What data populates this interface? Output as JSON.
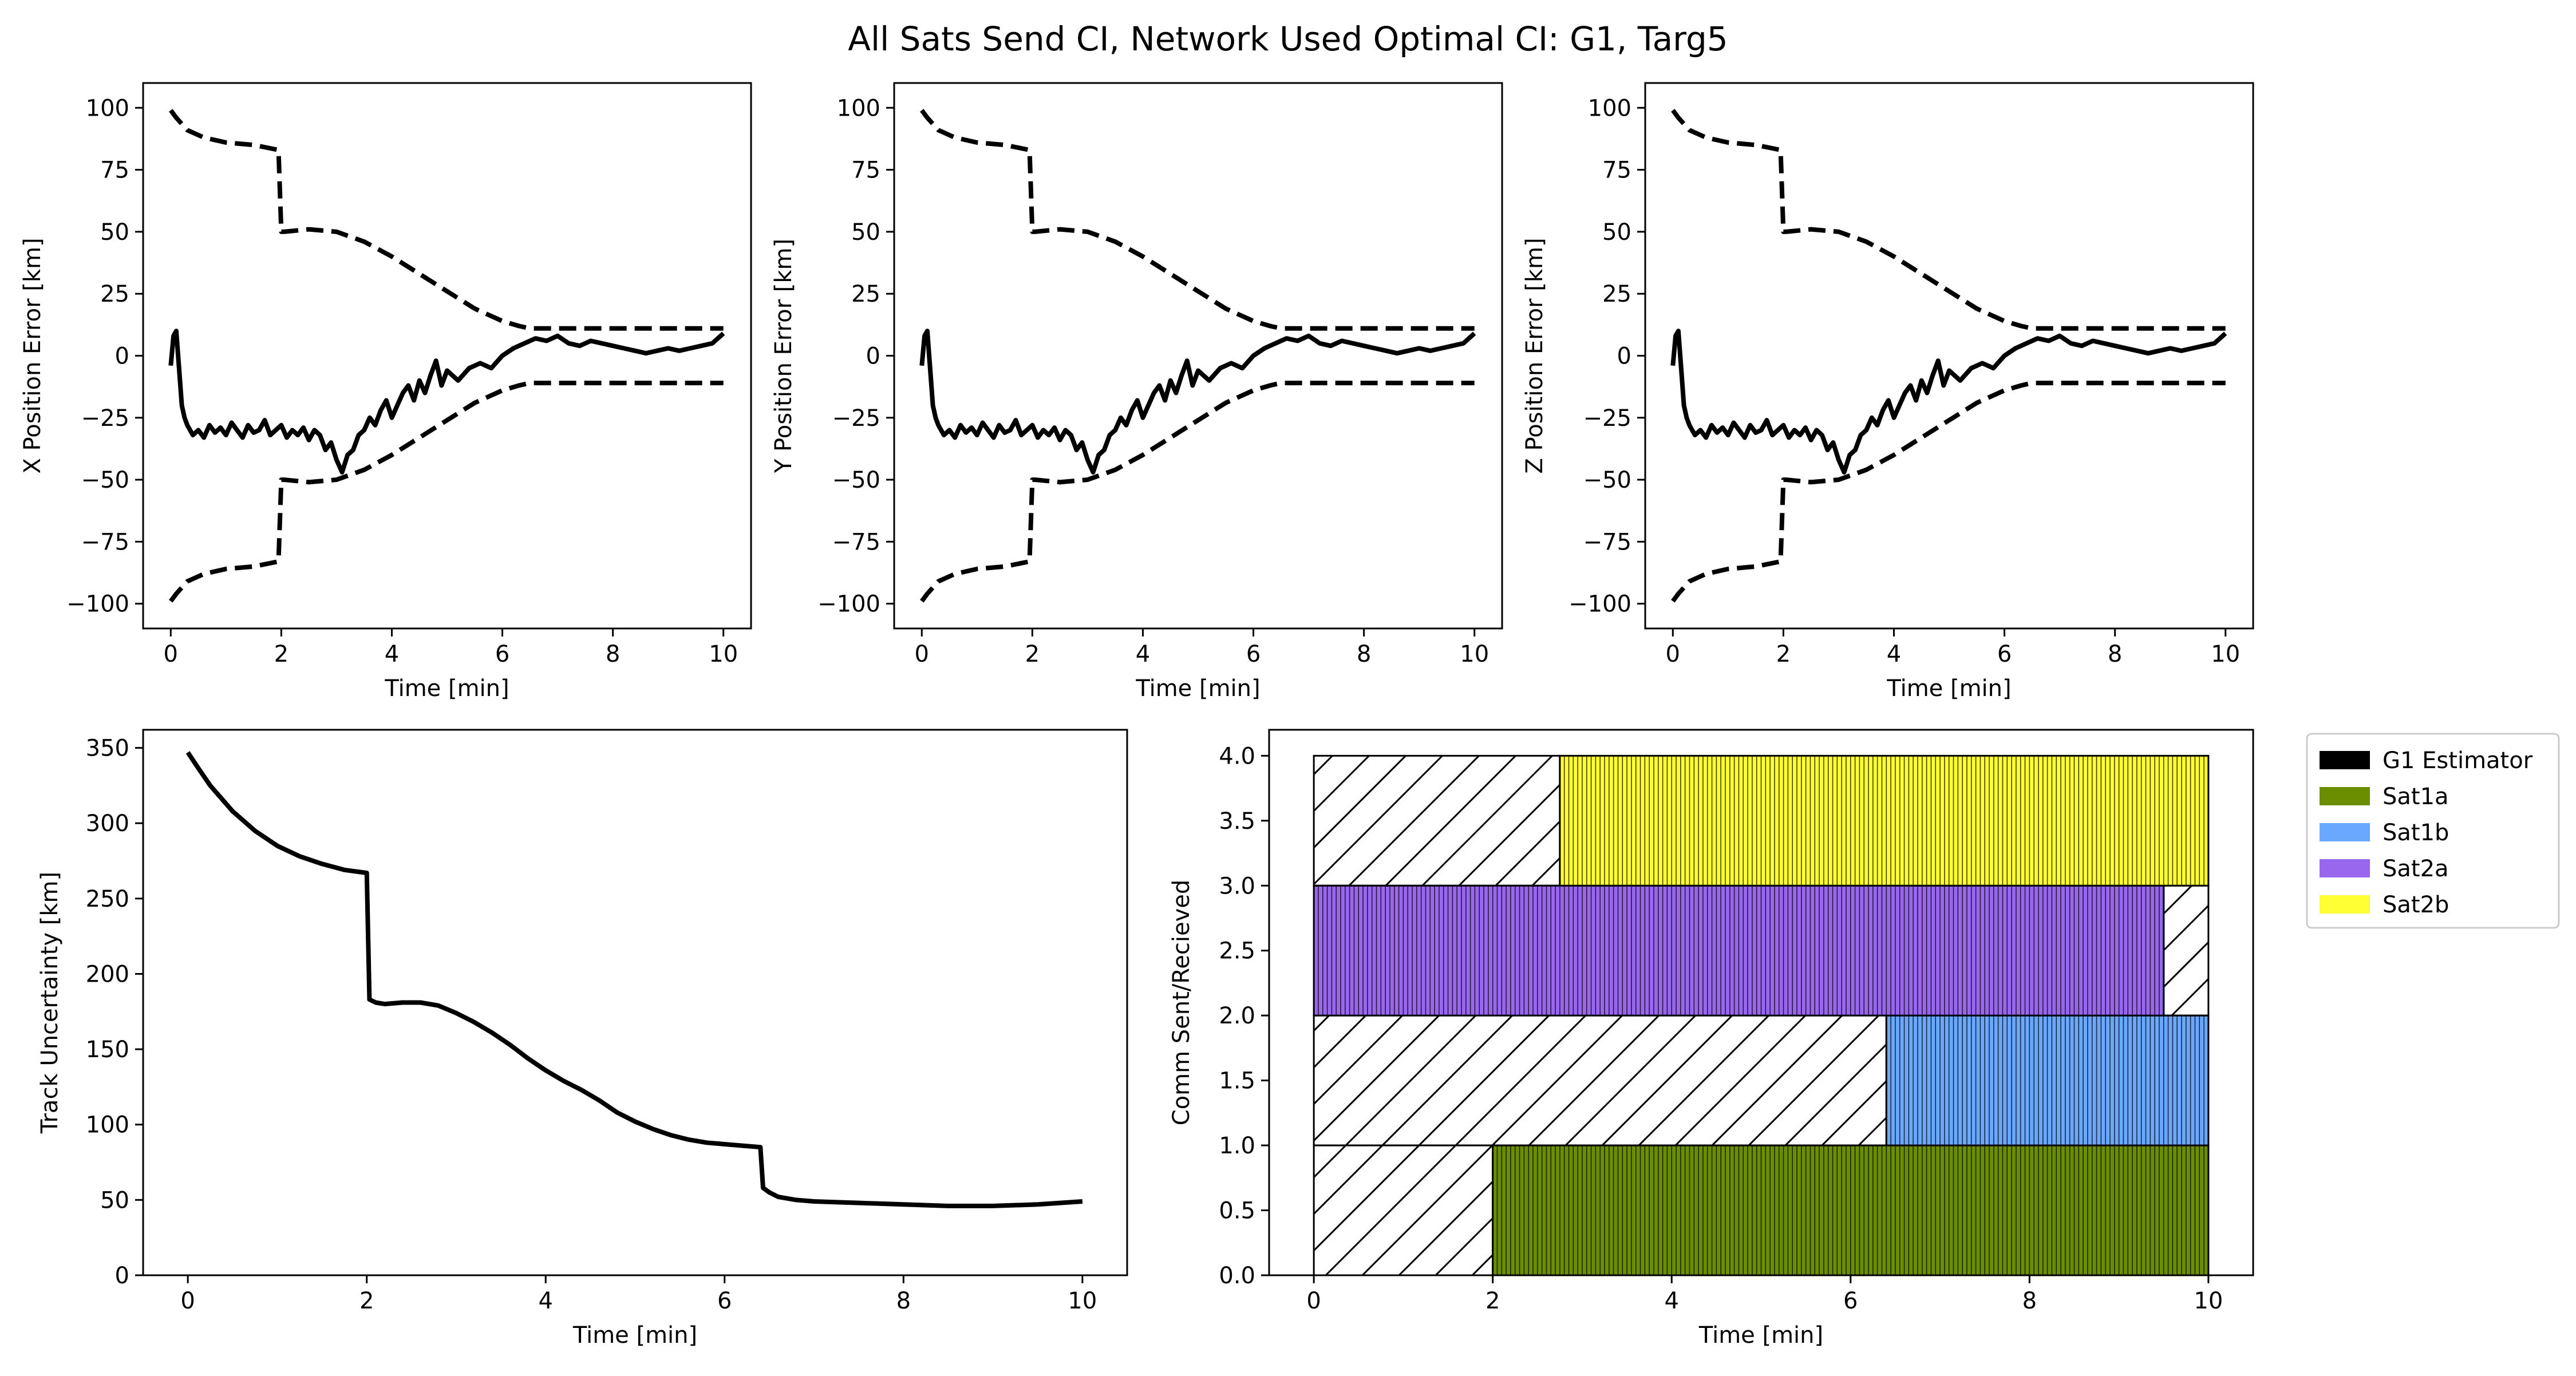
{
  "figure": {
    "title": "All Sats Send CI, Network Used Optimal CI: G1, Targ5"
  },
  "chart_data": [
    {
      "type": "line",
      "xlabel": "Time [min]",
      "ylabel": "X Position Error [km]",
      "xlim": [
        -0.5,
        10.5
      ],
      "ylim": [
        -110,
        110
      ],
      "xticks": [
        0,
        2,
        4,
        6,
        8,
        10
      ],
      "yticks": [
        -100,
        -75,
        -50,
        -25,
        0,
        25,
        50,
        75,
        100
      ],
      "grid": false,
      "series": [
        {
          "style": "solid",
          "x": [
            0,
            0.05,
            0.1,
            0.15,
            0.2,
            0.25,
            0.3,
            0.4,
            0.5,
            0.6,
            0.7,
            0.8,
            0.9,
            1.0,
            1.1,
            1.2,
            1.3,
            1.4,
            1.5,
            1.6,
            1.7,
            1.8,
            1.9,
            2.0,
            2.1,
            2.2,
            2.3,
            2.4,
            2.5,
            2.6,
            2.7,
            2.8,
            2.9,
            3.0,
            3.1,
            3.2,
            3.3,
            3.4,
            3.5,
            3.6,
            3.7,
            3.8,
            3.9,
            4.0,
            4.1,
            4.2,
            4.3,
            4.4,
            4.5,
            4.6,
            4.7,
            4.8,
            4.9,
            5.0,
            5.2,
            5.4,
            5.6,
            5.8,
            6.0,
            6.2,
            6.4,
            6.6,
            6.8,
            7.0,
            7.2,
            7.4,
            7.6,
            7.8,
            8.0,
            8.2,
            8.4,
            8.6,
            8.8,
            9.0,
            9.2,
            9.4,
            9.6,
            9.8,
            10.0
          ],
          "y": [
            -4,
            8,
            10,
            -5,
            -20,
            -25,
            -28,
            -32,
            -30,
            -33,
            -28,
            -31,
            -29,
            -32,
            -27,
            -30,
            -33,
            -28,
            -31,
            -30,
            -26,
            -32,
            -30,
            -28,
            -33,
            -30,
            -32,
            -29,
            -34,
            -30,
            -32,
            -38,
            -35,
            -42,
            -47,
            -40,
            -38,
            -32,
            -30,
            -25,
            -28,
            -22,
            -18,
            -25,
            -20,
            -15,
            -12,
            -18,
            -10,
            -15,
            -8,
            -2,
            -12,
            -6,
            -10,
            -5,
            -3,
            -5,
            0,
            3,
            5,
            7,
            6,
            8,
            5,
            4,
            6,
            5,
            4,
            3,
            2,
            1,
            2,
            3,
            2,
            3,
            4,
            5,
            9
          ]
        },
        {
          "style": "dashed",
          "x": [
            0,
            0.1,
            0.3,
            0.6,
            1.0,
            1.5,
            1.95,
            2.0,
            2.05,
            2.5,
            3.0,
            3.5,
            4.0,
            4.5,
            5.0,
            5.5,
            6.0,
            6.3,
            6.5,
            7.0,
            8.0,
            9.0,
            10.0
          ],
          "y": [
            99,
            96,
            91,
            88,
            86,
            85,
            83,
            50,
            50,
            51,
            50,
            46,
            40,
            33,
            26,
            19,
            14,
            12,
            11,
            11,
            11,
            11,
            11
          ]
        },
        {
          "style": "dashed",
          "x": [
            0,
            0.1,
            0.3,
            0.6,
            1.0,
            1.5,
            1.95,
            2.0,
            2.05,
            2.5,
            3.0,
            3.5,
            4.0,
            4.5,
            5.0,
            5.5,
            6.0,
            6.3,
            6.5,
            7.0,
            8.0,
            9.0,
            10.0
          ],
          "y": [
            -99,
            -96,
            -91,
            -88,
            -86,
            -85,
            -83,
            -50,
            -50,
            -51,
            -50,
            -46,
            -40,
            -33,
            -26,
            -19,
            -14,
            -12,
            -11,
            -11,
            -11,
            -11,
            -11
          ]
        }
      ]
    },
    {
      "type": "line",
      "xlabel": "Time [min]",
      "ylabel": "Y Position Error [km]",
      "xlim": [
        -0.5,
        10.5
      ],
      "ylim": [
        -110,
        110
      ],
      "xticks": [
        0,
        2,
        4,
        6,
        8,
        10
      ],
      "yticks": [
        -100,
        -75,
        -50,
        -25,
        0,
        25,
        50,
        75,
        100
      ],
      "grid": false,
      "series": [
        {
          "style": "solid",
          "x": [
            0,
            0.05,
            0.1,
            0.15,
            0.2,
            0.25,
            0.3,
            0.4,
            0.5,
            0.6,
            0.7,
            0.8,
            0.9,
            1.0,
            1.1,
            1.2,
            1.3,
            1.4,
            1.5,
            1.6,
            1.7,
            1.8,
            1.9,
            2.0,
            2.1,
            2.2,
            2.3,
            2.4,
            2.5,
            2.6,
            2.7,
            2.8,
            2.9,
            3.0,
            3.1,
            3.2,
            3.3,
            3.4,
            3.5,
            3.6,
            3.7,
            3.8,
            3.9,
            4.0,
            4.1,
            4.2,
            4.3,
            4.4,
            4.5,
            4.6,
            4.7,
            4.8,
            4.9,
            5.0,
            5.2,
            5.4,
            5.6,
            5.8,
            6.0,
            6.2,
            6.4,
            6.6,
            6.8,
            7.0,
            7.2,
            7.4,
            7.6,
            7.8,
            8.0,
            8.2,
            8.4,
            8.6,
            8.8,
            9.0,
            9.2,
            9.4,
            9.6,
            9.8,
            10.0
          ],
          "y": [
            -4,
            8,
            10,
            -5,
            -20,
            -25,
            -28,
            -32,
            -30,
            -33,
            -28,
            -31,
            -29,
            -32,
            -27,
            -30,
            -33,
            -28,
            -31,
            -30,
            -26,
            -32,
            -30,
            -28,
            -33,
            -30,
            -32,
            -29,
            -34,
            -30,
            -32,
            -38,
            -35,
            -42,
            -47,
            -40,
            -38,
            -32,
            -30,
            -25,
            -28,
            -22,
            -18,
            -25,
            -20,
            -15,
            -12,
            -18,
            -10,
            -15,
            -8,
            -2,
            -12,
            -6,
            -10,
            -5,
            -3,
            -5,
            0,
            3,
            5,
            7,
            6,
            8,
            5,
            4,
            6,
            5,
            4,
            3,
            2,
            1,
            2,
            3,
            2,
            3,
            4,
            5,
            9
          ]
        },
        {
          "style": "dashed",
          "x": [
            0,
            0.1,
            0.3,
            0.6,
            1.0,
            1.5,
            1.95,
            2.0,
            2.05,
            2.5,
            3.0,
            3.5,
            4.0,
            4.5,
            5.0,
            5.5,
            6.0,
            6.3,
            6.5,
            7.0,
            8.0,
            9.0,
            10.0
          ],
          "y": [
            99,
            96,
            91,
            88,
            86,
            85,
            83,
            50,
            50,
            51,
            50,
            46,
            40,
            33,
            26,
            19,
            14,
            12,
            11,
            11,
            11,
            11,
            11
          ]
        },
        {
          "style": "dashed",
          "x": [
            0,
            0.1,
            0.3,
            0.6,
            1.0,
            1.5,
            1.95,
            2.0,
            2.05,
            2.5,
            3.0,
            3.5,
            4.0,
            4.5,
            5.0,
            5.5,
            6.0,
            6.3,
            6.5,
            7.0,
            8.0,
            9.0,
            10.0
          ],
          "y": [
            -99,
            -96,
            -91,
            -88,
            -86,
            -85,
            -83,
            -50,
            -50,
            -51,
            -50,
            -46,
            -40,
            -33,
            -26,
            -19,
            -14,
            -12,
            -11,
            -11,
            -11,
            -11,
            -11
          ]
        }
      ]
    },
    {
      "type": "line",
      "xlabel": "Time [min]",
      "ylabel": "Z Position Error [km]",
      "xlim": [
        -0.5,
        10.5
      ],
      "ylim": [
        -110,
        110
      ],
      "xticks": [
        0,
        2,
        4,
        6,
        8,
        10
      ],
      "yticks": [
        -100,
        -75,
        -50,
        -25,
        0,
        25,
        50,
        75,
        100
      ],
      "grid": false,
      "series": [
        {
          "style": "solid",
          "x": [
            0,
            0.05,
            0.1,
            0.15,
            0.2,
            0.25,
            0.3,
            0.4,
            0.5,
            0.6,
            0.7,
            0.8,
            0.9,
            1.0,
            1.1,
            1.2,
            1.3,
            1.4,
            1.5,
            1.6,
            1.7,
            1.8,
            1.9,
            2.0,
            2.1,
            2.2,
            2.3,
            2.4,
            2.5,
            2.6,
            2.7,
            2.8,
            2.9,
            3.0,
            3.1,
            3.2,
            3.3,
            3.4,
            3.5,
            3.6,
            3.7,
            3.8,
            3.9,
            4.0,
            4.1,
            4.2,
            4.3,
            4.4,
            4.5,
            4.6,
            4.7,
            4.8,
            4.9,
            5.0,
            5.2,
            5.4,
            5.6,
            5.8,
            6.0,
            6.2,
            6.4,
            6.6,
            6.8,
            7.0,
            7.2,
            7.4,
            7.6,
            7.8,
            8.0,
            8.2,
            8.4,
            8.6,
            8.8,
            9.0,
            9.2,
            9.4,
            9.6,
            9.8,
            10.0
          ],
          "y": [
            -4,
            8,
            10,
            -5,
            -20,
            -25,
            -28,
            -32,
            -30,
            -33,
            -28,
            -31,
            -29,
            -32,
            -27,
            -30,
            -33,
            -28,
            -31,
            -30,
            -26,
            -32,
            -30,
            -28,
            -33,
            -30,
            -32,
            -29,
            -34,
            -30,
            -32,
            -38,
            -35,
            -42,
            -47,
            -40,
            -38,
            -32,
            -30,
            -25,
            -28,
            -22,
            -18,
            -25,
            -20,
            -15,
            -12,
            -18,
            -10,
            -15,
            -8,
            -2,
            -12,
            -6,
            -10,
            -5,
            -3,
            -5,
            0,
            3,
            5,
            7,
            6,
            8,
            5,
            4,
            6,
            5,
            4,
            3,
            2,
            1,
            2,
            3,
            2,
            3,
            4,
            5,
            9
          ]
        },
        {
          "style": "dashed",
          "x": [
            0,
            0.1,
            0.3,
            0.6,
            1.0,
            1.5,
            1.95,
            2.0,
            2.05,
            2.5,
            3.0,
            3.5,
            4.0,
            4.5,
            5.0,
            5.5,
            6.0,
            6.3,
            6.5,
            7.0,
            8.0,
            9.0,
            10.0
          ],
          "y": [
            99,
            96,
            91,
            88,
            86,
            85,
            83,
            50,
            50,
            51,
            50,
            46,
            40,
            33,
            26,
            19,
            14,
            12,
            11,
            11,
            11,
            11,
            11
          ]
        },
        {
          "style": "dashed",
          "x": [
            0,
            0.1,
            0.3,
            0.6,
            1.0,
            1.5,
            1.95,
            2.0,
            2.05,
            2.5,
            3.0,
            3.5,
            4.0,
            4.5,
            5.0,
            5.5,
            6.0,
            6.3,
            6.5,
            7.0,
            8.0,
            9.0,
            10.0
          ],
          "y": [
            -99,
            -96,
            -91,
            -88,
            -86,
            -85,
            -83,
            -50,
            -50,
            -51,
            -50,
            -46,
            -40,
            -33,
            -26,
            -19,
            -14,
            -12,
            -11,
            -11,
            -11,
            -11,
            -11
          ]
        }
      ]
    },
    {
      "type": "line",
      "xlabel": "Time [min]",
      "ylabel": "Track Uncertainty [km]",
      "xlim": [
        -0.5,
        10.5
      ],
      "ylim": [
        0,
        362
      ],
      "xticks": [
        0,
        2,
        4,
        6,
        8,
        10
      ],
      "yticks": [
        0,
        50,
        100,
        150,
        200,
        250,
        300,
        350
      ],
      "grid": false,
      "series": [
        {
          "style": "solid",
          "x": [
            0,
            0.1,
            0.25,
            0.5,
            0.75,
            1.0,
            1.25,
            1.5,
            1.75,
            2.0,
            2.03,
            2.1,
            2.2,
            2.4,
            2.6,
            2.8,
            3.0,
            3.2,
            3.4,
            3.6,
            3.8,
            4.0,
            4.2,
            4.4,
            4.6,
            4.8,
            5.0,
            5.2,
            5.4,
            5.6,
            5.8,
            6.0,
            6.2,
            6.4,
            6.43,
            6.5,
            6.6,
            6.8,
            7.0,
            7.5,
            8.0,
            8.5,
            9.0,
            9.5,
            10.0
          ],
          "y": [
            347,
            338,
            325,
            308,
            295,
            285,
            278,
            273,
            269,
            267,
            183,
            181,
            180,
            181,
            181,
            179,
            174,
            168,
            161,
            153,
            144,
            136,
            129,
            123,
            116,
            108,
            102,
            97,
            93,
            90,
            88,
            87,
            86,
            85,
            58,
            55,
            52,
            50,
            49,
            48,
            47,
            46,
            46,
            47,
            49
          ]
        }
      ]
    },
    {
      "type": "bar",
      "orientation": "horizontal",
      "xlabel": "Time [min]",
      "ylabel": "Comm Sent/Recieved",
      "xlim": [
        -0.5,
        10.5
      ],
      "ylim": [
        0,
        4.2
      ],
      "xticks": [
        0,
        2,
        4,
        6,
        8,
        10
      ],
      "yticks": [
        0.0,
        0.5,
        1.0,
        1.5,
        2.0,
        2.5,
        3.0,
        3.5,
        4.0
      ],
      "legend_position": "outside upper right",
      "legend": [
        {
          "name": "G1 Estimator",
          "color": "#000000"
        },
        {
          "name": "Sat1a",
          "color": "#6b8e00"
        },
        {
          "name": "Sat1b",
          "color": "#6aa7ff"
        },
        {
          "name": "Sat2a",
          "color": "#9966ee"
        },
        {
          "name": "Sat2b",
          "color": "#ffff33"
        }
      ],
      "rows": [
        {
          "y": [
            0,
            1
          ],
          "hatched": [
            0,
            2.0
          ],
          "filled": [
            2.0,
            10.0
          ],
          "color": "#6b8e00"
        },
        {
          "y": [
            1,
            2
          ],
          "hatched": [
            0,
            6.4
          ],
          "filled": [
            6.4,
            10.0
          ],
          "color": "#6aa7ff"
        },
        {
          "y": [
            2,
            3
          ],
          "hatched": [
            9.5,
            10.0
          ],
          "filled": [
            0,
            9.5
          ],
          "color": "#9966ee"
        },
        {
          "y": [
            3,
            4
          ],
          "hatched": [
            0,
            2.75
          ],
          "filled": [
            2.75,
            10.0
          ],
          "color": "#ffff33"
        }
      ]
    }
  ]
}
